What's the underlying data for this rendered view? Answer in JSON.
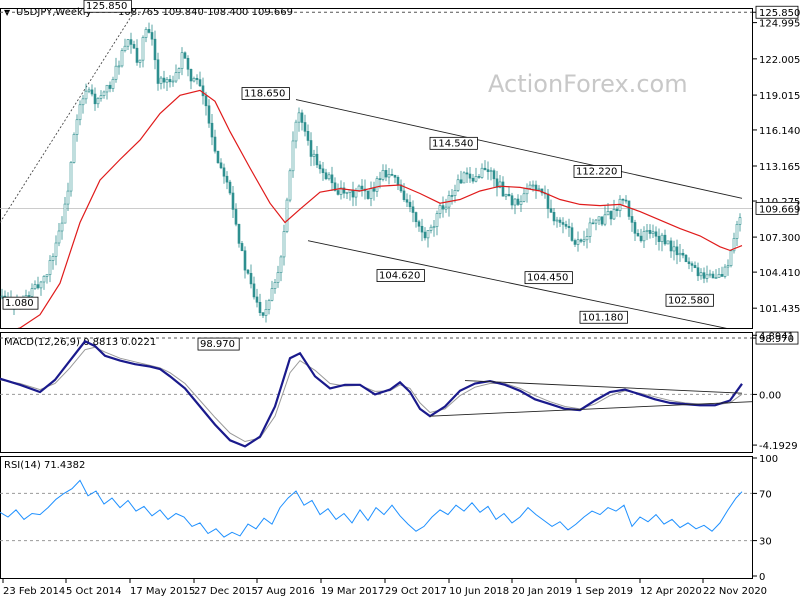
{
  "header": {
    "symbol": "USDJPY,Weekly",
    "ohlc": "108.765 109.840 108.400 109.669"
  },
  "watermark": "ActionForex.com",
  "colors": {
    "candle": "#2f8f8f",
    "ma": "#e01b1b",
    "macd": "#1a1a8c",
    "signal": "#999999",
    "rsi": "#1e90ff",
    "trend": "#222222",
    "current_bg": "#ffffff"
  },
  "chart_data": [
    {
      "type": "candlestick",
      "title": "USDJPY,Weekly",
      "ylim": [
        99.8,
        126.2
      ],
      "y_ticks": [
        "125.850",
        "124.995",
        "122.005",
        "119.015",
        "116.140",
        "113.165",
        "110.275",
        "107.300",
        "104.410",
        "101.435",
        "98.970"
      ],
      "current_price": "109.669",
      "x_ticks": [
        "23 Feb 2014",
        "5 Oct 2014",
        "17 May 2015",
        "27 Dec 2015",
        "7 Aug 2016",
        "19 Mar 2017",
        "29 Oct 2017",
        "10 Jun 2018",
        "20 Jan 2019",
        "1 Sep 2019",
        "12 Apr 2020",
        "22 Nov 2020"
      ],
      "price_labels": [
        "125.850",
        "118.650",
        "114.540",
        "112.220",
        "104.620",
        "104.450",
        "101.180",
        "102.580",
        "98.970",
        "1.080"
      ],
      "close_path": [
        [
          0,
          102.4
        ],
        [
          8,
          102.0
        ],
        [
          20,
          101.9
        ],
        [
          30,
          102.6
        ],
        [
          40,
          103.5
        ],
        [
          48,
          104.6
        ],
        [
          58,
          107.5
        ],
        [
          66,
          110.0
        ],
        [
          74,
          115.5
        ],
        [
          80,
          118.0
        ],
        [
          88,
          119.5
        ],
        [
          96,
          118.4
        ],
        [
          104,
          119.0
        ],
        [
          112,
          120.2
        ],
        [
          122,
          122.4
        ],
        [
          130,
          123.5
        ],
        [
          138,
          121.5
        ],
        [
          146,
          124.5
        ],
        [
          152,
          123.3
        ],
        [
          158,
          120.4
        ],
        [
          166,
          120.1
        ],
        [
          174,
          119.8
        ],
        [
          182,
          122.6
        ],
        [
          188,
          120.8
        ],
        [
          196,
          120.2
        ],
        [
          204,
          118.8
        ],
        [
          210,
          116.5
        ],
        [
          218,
          113.5
        ],
        [
          226,
          112.5
        ],
        [
          232,
          110.5
        ],
        [
          238,
          107.5
        ],
        [
          244,
          105.0
        ],
        [
          250,
          103.5
        ],
        [
          256,
          101.9
        ],
        [
          264,
          101.0
        ],
        [
          272,
          103.2
        ],
        [
          280,
          105.0
        ],
        [
          286,
          109.5
        ],
        [
          292,
          115.0
        ],
        [
          298,
          117.7
        ],
        [
          305,
          115.6
        ],
        [
          312,
          113.9
        ],
        [
          320,
          113.2
        ],
        [
          328,
          112.3
        ],
        [
          336,
          111.3
        ],
        [
          344,
          110.7
        ],
        [
          352,
          110.8
        ],
        [
          360,
          111.3
        ],
        [
          368,
          110.4
        ],
        [
          376,
          111.9
        ],
        [
          384,
          112.8
        ],
        [
          392,
          112.4
        ],
        [
          400,
          111.4
        ],
        [
          408,
          110.0
        ],
        [
          416,
          108.5
        ],
        [
          424,
          107.2
        ],
        [
          432,
          107.8
        ],
        [
          440,
          109.5
        ],
        [
          448,
          110.4
        ],
        [
          456,
          111.5
        ],
        [
          464,
          112.4
        ],
        [
          472,
          111.6
        ],
        [
          480,
          112.8
        ],
        [
          488,
          112.9
        ],
        [
          496,
          111.9
        ],
        [
          504,
          111.0
        ],
        [
          512,
          110.3
        ],
        [
          520,
          109.8
        ],
        [
          528,
          111.3
        ],
        [
          536,
          111.6
        ],
        [
          544,
          110.7
        ],
        [
          552,
          109.2
        ],
        [
          560,
          108.6
        ],
        [
          568,
          107.9
        ],
        [
          576,
          106.9
        ],
        [
          584,
          107.3
        ],
        [
          592,
          108.5
        ],
        [
          600,
          108.6
        ],
        [
          608,
          109.0
        ],
        [
          616,
          109.6
        ],
        [
          624,
          110.6
        ],
        [
          632,
          108.3
        ],
        [
          640,
          107.2
        ],
        [
          648,
          107.8
        ],
        [
          656,
          107.4
        ],
        [
          664,
          106.9
        ],
        [
          672,
          106.3
        ],
        [
          680,
          105.8
        ],
        [
          688,
          105.3
        ],
        [
          696,
          104.6
        ],
        [
          704,
          104.3
        ],
        [
          712,
          104.1
        ],
        [
          720,
          104.0
        ],
        [
          726,
          104.7
        ],
        [
          732,
          106.3
        ],
        [
          738,
          108.4
        ],
        [
          742,
          109.7
        ]
      ],
      "moving_average": [
        [
          0,
          99.4
        ],
        [
          20,
          99.8
        ],
        [
          40,
          100.9
        ],
        [
          60,
          103.5
        ],
        [
          80,
          108.5
        ],
        [
          100,
          112.0
        ],
        [
          120,
          113.7
        ],
        [
          140,
          115.3
        ],
        [
          160,
          117.5
        ],
        [
          180,
          119.0
        ],
        [
          200,
          119.4
        ],
        [
          215,
          118.5
        ],
        [
          230,
          116.0
        ],
        [
          250,
          113.0
        ],
        [
          270,
          110.1
        ],
        [
          285,
          108.5
        ],
        [
          300,
          109.6
        ],
        [
          320,
          111.0
        ],
        [
          340,
          111.3
        ],
        [
          360,
          111.1
        ],
        [
          380,
          111.5
        ],
        [
          400,
          111.6
        ],
        [
          420,
          110.9
        ],
        [
          440,
          110.1
        ],
        [
          460,
          110.4
        ],
        [
          480,
          111.1
        ],
        [
          500,
          111.5
        ],
        [
          520,
          111.4
        ],
        [
          540,
          111.1
        ],
        [
          560,
          110.4
        ],
        [
          580,
          110.0
        ],
        [
          600,
          109.9
        ],
        [
          620,
          110.0
        ],
        [
          640,
          109.4
        ],
        [
          660,
          108.7
        ],
        [
          680,
          108.0
        ],
        [
          700,
          107.4
        ],
        [
          720,
          106.5
        ],
        [
          730,
          106.2
        ],
        [
          742,
          106.6
        ]
      ],
      "trendlines": [
        [
          [
            0,
            108.5
          ],
          [
            135,
            126.0
          ]
        ],
        [
          [
            296,
            118.65
          ],
          [
            742,
            110.5
          ]
        ],
        [
          [
            308,
            107.0
          ],
          [
            742,
            99.5
          ]
        ]
      ]
    },
    {
      "type": "line",
      "title": "MACD(12,26,9) 0.8813 0.0221",
      "ylim": [
        -4.6,
        5.0
      ],
      "y_ticks": [
        "4.8941",
        "0.00",
        "-4.1929"
      ],
      "macd": [
        [
          0,
          1.3
        ],
        [
          20,
          0.8
        ],
        [
          40,
          0.2
        ],
        [
          55,
          1.2
        ],
        [
          70,
          2.8
        ],
        [
          85,
          4.4
        ],
        [
          95,
          4.0
        ],
        [
          105,
          3.2
        ],
        [
          120,
          2.8
        ],
        [
          135,
          2.5
        ],
        [
          150,
          2.3
        ],
        [
          160,
          2.1
        ],
        [
          170,
          1.5
        ],
        [
          185,
          0.5
        ],
        [
          200,
          -1.0
        ],
        [
          215,
          -2.5
        ],
        [
          230,
          -3.8
        ],
        [
          245,
          -4.3
        ],
        [
          260,
          -3.5
        ],
        [
          275,
          -1.0
        ],
        [
          290,
          3.0
        ],
        [
          300,
          3.4
        ],
        [
          315,
          1.5
        ],
        [
          330,
          0.5
        ],
        [
          345,
          0.8
        ],
        [
          360,
          0.8
        ],
        [
          375,
          0.0
        ],
        [
          390,
          0.4
        ],
        [
          400,
          1.0
        ],
        [
          410,
          0.2
        ],
        [
          420,
          -1.2
        ],
        [
          430,
          -1.8
        ],
        [
          445,
          -1.0
        ],
        [
          460,
          0.3
        ],
        [
          475,
          0.9
        ],
        [
          490,
          1.1
        ],
        [
          505,
          0.8
        ],
        [
          520,
          0.3
        ],
        [
          535,
          -0.4
        ],
        [
          550,
          -0.8
        ],
        [
          565,
          -1.2
        ],
        [
          580,
          -1.3
        ],
        [
          595,
          -0.5
        ],
        [
          610,
          0.2
        ],
        [
          625,
          0.4
        ],
        [
          640,
          0.0
        ],
        [
          655,
          -0.4
        ],
        [
          670,
          -0.7
        ],
        [
          685,
          -0.8
        ],
        [
          700,
          -0.9
        ],
        [
          715,
          -0.9
        ],
        [
          730,
          -0.5
        ],
        [
          742,
          0.88
        ]
      ],
      "signal": [
        [
          0,
          1.2
        ],
        [
          20,
          0.9
        ],
        [
          40,
          0.4
        ],
        [
          55,
          0.9
        ],
        [
          70,
          2.2
        ],
        [
          85,
          3.7
        ],
        [
          95,
          3.9
        ],
        [
          105,
          3.5
        ],
        [
          120,
          3.0
        ],
        [
          135,
          2.7
        ],
        [
          150,
          2.4
        ],
        [
          160,
          2.2
        ],
        [
          170,
          1.8
        ],
        [
          185,
          0.9
        ],
        [
          200,
          -0.5
        ],
        [
          215,
          -1.9
        ],
        [
          230,
          -3.2
        ],
        [
          245,
          -3.9
        ],
        [
          260,
          -3.6
        ],
        [
          275,
          -1.8
        ],
        [
          290,
          1.8
        ],
        [
          300,
          2.8
        ],
        [
          315,
          2.0
        ],
        [
          330,
          0.9
        ],
        [
          345,
          0.7
        ],
        [
          360,
          0.75
        ],
        [
          375,
          0.25
        ],
        [
          390,
          0.3
        ],
        [
          400,
          0.8
        ],
        [
          410,
          0.5
        ],
        [
          420,
          -0.7
        ],
        [
          430,
          -1.5
        ],
        [
          445,
          -1.2
        ],
        [
          460,
          -0.1
        ],
        [
          475,
          0.6
        ],
        [
          490,
          0.9
        ],
        [
          505,
          0.9
        ],
        [
          520,
          0.5
        ],
        [
          535,
          -0.1
        ],
        [
          550,
          -0.6
        ],
        [
          565,
          -1.0
        ],
        [
          580,
          -1.2
        ],
        [
          595,
          -0.8
        ],
        [
          610,
          -0.1
        ],
        [
          625,
          0.3
        ],
        [
          640,
          0.1
        ],
        [
          655,
          -0.2
        ],
        [
          670,
          -0.5
        ],
        [
          685,
          -0.7
        ],
        [
          700,
          -0.8
        ],
        [
          715,
          -0.85
        ],
        [
          730,
          -0.7
        ],
        [
          742,
          0.02
        ]
      ],
      "trendlines": [
        [
          [
            430,
            -1.8
          ],
          [
            752,
            -0.6
          ]
        ],
        [
          [
            465,
            1.15
          ],
          [
            742,
            0.1
          ]
        ]
      ]
    },
    {
      "type": "line",
      "title": "RSI(14) 71.4382",
      "ylim": [
        0,
        100
      ],
      "y_ticks": [
        "100",
        "70",
        "30",
        "0"
      ],
      "values": [
        [
          0,
          54
        ],
        [
          8,
          50
        ],
        [
          16,
          56
        ],
        [
          24,
          48
        ],
        [
          32,
          53
        ],
        [
          40,
          52
        ],
        [
          48,
          58
        ],
        [
          56,
          65
        ],
        [
          64,
          70
        ],
        [
          72,
          74
        ],
        [
          80,
          81
        ],
        [
          88,
          68
        ],
        [
          96,
          72
        ],
        [
          104,
          61
        ],
        [
          112,
          66
        ],
        [
          120,
          58
        ],
        [
          128,
          64
        ],
        [
          136,
          55
        ],
        [
          144,
          59
        ],
        [
          152,
          51
        ],
        [
          160,
          56
        ],
        [
          168,
          48
        ],
        [
          176,
          53
        ],
        [
          184,
          50
        ],
        [
          192,
          42
        ],
        [
          200,
          45
        ],
        [
          208,
          36
        ],
        [
          216,
          40
        ],
        [
          224,
          33
        ],
        [
          232,
          37
        ],
        [
          240,
          34
        ],
        [
          248,
          44
        ],
        [
          256,
          40
        ],
        [
          264,
          49
        ],
        [
          272,
          44
        ],
        [
          280,
          58
        ],
        [
          288,
          66
        ],
        [
          296,
          72
        ],
        [
          304,
          60
        ],
        [
          312,
          64
        ],
        [
          320,
          52
        ],
        [
          328,
          57
        ],
        [
          336,
          48
        ],
        [
          344,
          53
        ],
        [
          352,
          45
        ],
        [
          360,
          56
        ],
        [
          368,
          47
        ],
        [
          376,
          58
        ],
        [
          384,
          52
        ],
        [
          392,
          60
        ],
        [
          400,
          51
        ],
        [
          408,
          44
        ],
        [
          416,
          38
        ],
        [
          424,
          42
        ],
        [
          432,
          50
        ],
        [
          440,
          56
        ],
        [
          448,
          52
        ],
        [
          456,
          60
        ],
        [
          464,
          55
        ],
        [
          472,
          62
        ],
        [
          480,
          54
        ],
        [
          488,
          59
        ],
        [
          496,
          48
        ],
        [
          504,
          53
        ],
        [
          512,
          45
        ],
        [
          520,
          50
        ],
        [
          528,
          58
        ],
        [
          536,
          52
        ],
        [
          544,
          47
        ],
        [
          552,
          42
        ],
        [
          560,
          46
        ],
        [
          568,
          39
        ],
        [
          576,
          44
        ],
        [
          584,
          50
        ],
        [
          592,
          55
        ],
        [
          600,
          52
        ],
        [
          608,
          58
        ],
        [
          616,
          55
        ],
        [
          624,
          60
        ],
        [
          632,
          42
        ],
        [
          640,
          50
        ],
        [
          648,
          46
        ],
        [
          656,
          52
        ],
        [
          664,
          44
        ],
        [
          672,
          48
        ],
        [
          680,
          41
        ],
        [
          688,
          45
        ],
        [
          696,
          40
        ],
        [
          704,
          43
        ],
        [
          712,
          38
        ],
        [
          720,
          45
        ],
        [
          728,
          56
        ],
        [
          736,
          66
        ],
        [
          742,
          71.4
        ]
      ]
    }
  ]
}
